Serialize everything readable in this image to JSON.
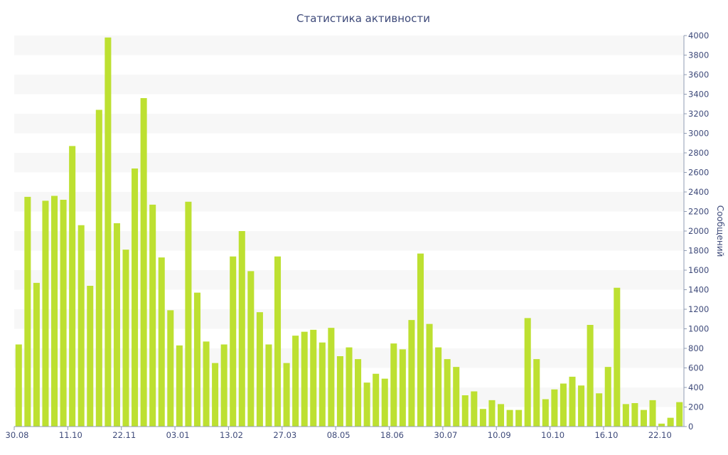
{
  "chart_data": {
    "type": "bar",
    "title": "Статистика активности",
    "xlabel": "",
    "ylabel": "Сообщений",
    "ylim": [
      0,
      4000
    ],
    "y_ticks": [
      0,
      200,
      400,
      600,
      800,
      1000,
      1200,
      1400,
      1600,
      1800,
      2000,
      2200,
      2400,
      2600,
      2800,
      3000,
      3200,
      3400,
      3600,
      3800,
      4000
    ],
    "y_axis_side": "right",
    "grid": "alternating horizontal bands",
    "legend": "none",
    "bar_color": "#bde031",
    "x_tick_labels": [
      {
        "label": "30.08",
        "index": 0
      },
      {
        "label": "11.10",
        "index": 6
      },
      {
        "label": "22.11",
        "index": 12
      },
      {
        "label": "03.01",
        "index": 18
      },
      {
        "label": "13.02",
        "index": 24
      },
      {
        "label": "27.03",
        "index": 30
      },
      {
        "label": "08.05",
        "index": 36
      },
      {
        "label": "18.06",
        "index": 42
      },
      {
        "label": "30.07",
        "index": 48
      },
      {
        "label": "10.09",
        "index": 54
      },
      {
        "label": "10.10",
        "index": 60
      },
      {
        "label": "16.10",
        "index": 66
      },
      {
        "label": "22.10",
        "index": 72
      }
    ],
    "values": [
      840,
      2350,
      1470,
      2310,
      2360,
      2320,
      2870,
      2060,
      1440,
      3240,
      3980,
      2080,
      1810,
      2640,
      3360,
      2270,
      1730,
      1190,
      830,
      2300,
      1370,
      870,
      650,
      840,
      1740,
      2000,
      1590,
      1170,
      840,
      1740,
      650,
      930,
      970,
      990,
      860,
      1010,
      720,
      810,
      690,
      450,
      540,
      490,
      850,
      790,
      1090,
      1770,
      1050,
      810,
      690,
      610,
      320,
      360,
      180,
      270,
      230,
      170,
      170,
      1110,
      690,
      280,
      380,
      440,
      510,
      420,
      1040,
      340,
      610,
      1420,
      230,
      240,
      170,
      270,
      30,
      90,
      250
    ]
  }
}
